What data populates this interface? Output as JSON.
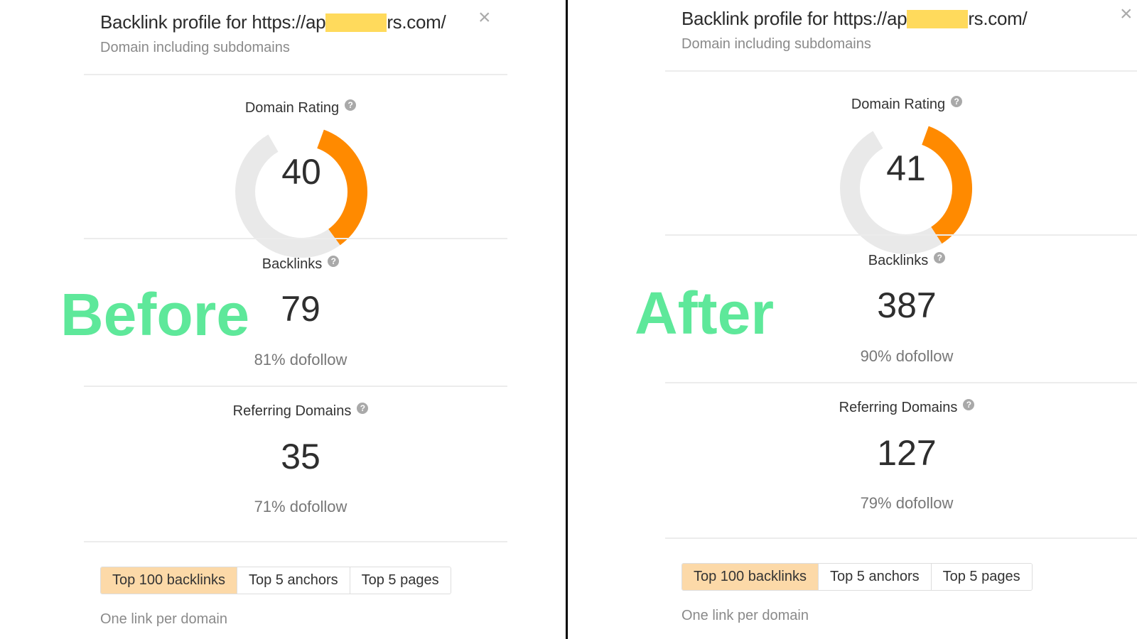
{
  "colors": {
    "accent": "#ff8a00",
    "track": "#e9e9e9",
    "active_tab": "#fcd9a8",
    "overlay_text": "#5ee89a",
    "redaction": "#ffda5c"
  },
  "overlays": {
    "before": "Before",
    "after": "After"
  },
  "panels": [
    {
      "title_prefix": "Backlink profile for https://ap",
      "title_suffix": "rs.com/",
      "subtitle": "Domain including subdomains",
      "close_icon": "×",
      "domain_rating": {
        "label": "Domain Rating",
        "value": "40",
        "fraction": 0.4
      },
      "backlinks": {
        "label": "Backlinks",
        "value": "79",
        "dofollow": "81% dofollow"
      },
      "referring_domains": {
        "label": "Referring Domains",
        "value": "35",
        "dofollow": "71% dofollow"
      },
      "tabs": [
        "Top 100 backlinks",
        "Top 5 anchors",
        "Top 5 pages"
      ],
      "note": "One link per domain",
      "help": "?"
    },
    {
      "title_prefix": "Backlink profile for https://ap",
      "title_suffix": "rs.com/",
      "subtitle": "Domain including subdomains",
      "close_icon": "×",
      "domain_rating": {
        "label": "Domain Rating",
        "value": "41",
        "fraction": 0.41
      },
      "backlinks": {
        "label": "Backlinks",
        "value": "387",
        "dofollow": "90% dofollow"
      },
      "referring_domains": {
        "label": "Referring Domains",
        "value": "127",
        "dofollow": "79% dofollow"
      },
      "tabs": [
        "Top 100 backlinks",
        "Top 5 anchors",
        "Top 5 pages"
      ],
      "note": "One link per domain",
      "help": "?"
    }
  ]
}
